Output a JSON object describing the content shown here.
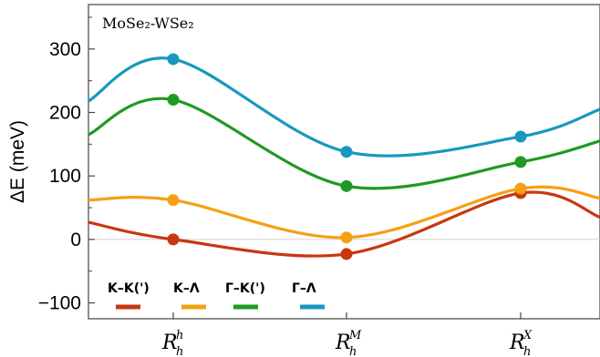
{
  "panel_label": "MoSe₂-WSe₂",
  "chart_data": {
    "type": "line",
    "title": "",
    "ylabel": "ΔE (meV)",
    "xlabel": "",
    "ylim": [
      -125,
      370
    ],
    "yticks": [
      -100,
      0,
      100,
      200,
      300
    ],
    "grid": false,
    "zero_line": true,
    "legend_position": "bottom-left",
    "categories": [
      {
        "base": "R",
        "sub": "h",
        "sup": "h"
      },
      {
        "base": "R",
        "sub": "h",
        "sup": "M"
      },
      {
        "base": "R",
        "sub": "h",
        "sup": "X"
      }
    ],
    "series": [
      {
        "name": "K–K(')",
        "color": "#c8370f",
        "values": [
          0,
          -23,
          73
        ],
        "curve_y": [
          27,
          0,
          -23,
          73,
          35
        ]
      },
      {
        "name": "K–Λ",
        "color": "#f5a012",
        "values": [
          62,
          3,
          80
        ],
        "curve_y": [
          62,
          62,
          3,
          80,
          65
        ]
      },
      {
        "name": "Γ–K(')",
        "color": "#1e9a23",
        "values": [
          220,
          84,
          122
        ],
        "curve_y": [
          165,
          220,
          84,
          122,
          155
        ]
      },
      {
        "name": "Γ–Λ",
        "color": "#1898bf",
        "values": [
          284,
          138,
          162
        ],
        "curve_y": [
          218,
          284,
          138,
          162,
          205
        ]
      }
    ]
  }
}
